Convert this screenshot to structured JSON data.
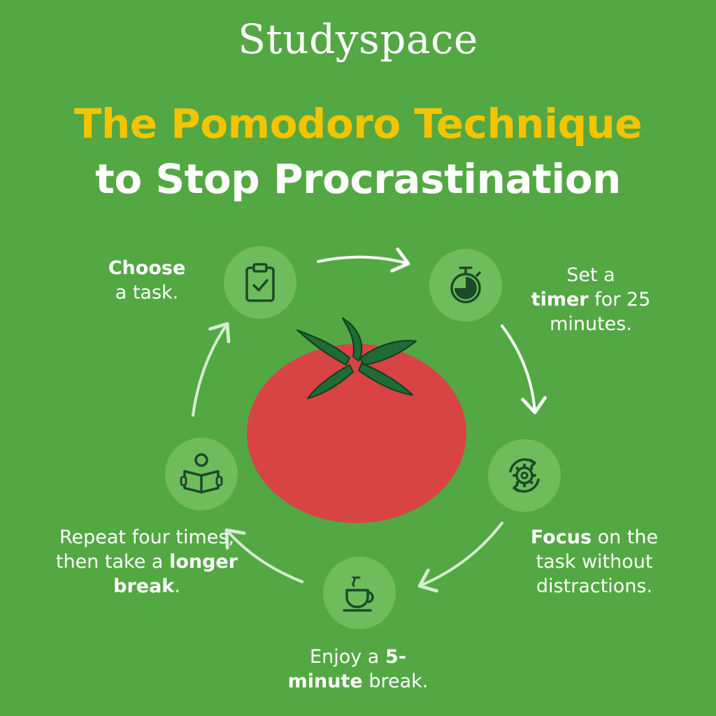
{
  "brand": "Studyspace",
  "title": {
    "line1": "The Pomodoro Technique",
    "line2": "to Stop Procrastination"
  },
  "colors": {
    "background": "#53a843",
    "title_accent": "#f5c400",
    "icon_circle": "#6ebc5c",
    "icon_stroke": "#1d4a2a",
    "tomato": "#d84343",
    "tomato_leaves": "#1f6b35"
  },
  "steps": [
    {
      "icon": "clipboard-check-icon",
      "bold_first": "Choose",
      "rest": "a task."
    },
    {
      "icon": "stopwatch-icon",
      "lead": "Set a",
      "bold": "timer",
      "rest": "for 25 minutes."
    },
    {
      "icon": "gear-cycle-icon",
      "bold": "Focus",
      "rest": "on the task without distractions."
    },
    {
      "icon": "coffee-cup-icon",
      "lead": "Enjoy a",
      "bold": "5-minute",
      "rest": "break."
    },
    {
      "icon": "person-reading-icon",
      "lead": "Repeat four times, then take a",
      "bold": "longer break",
      "rest": "."
    }
  ]
}
